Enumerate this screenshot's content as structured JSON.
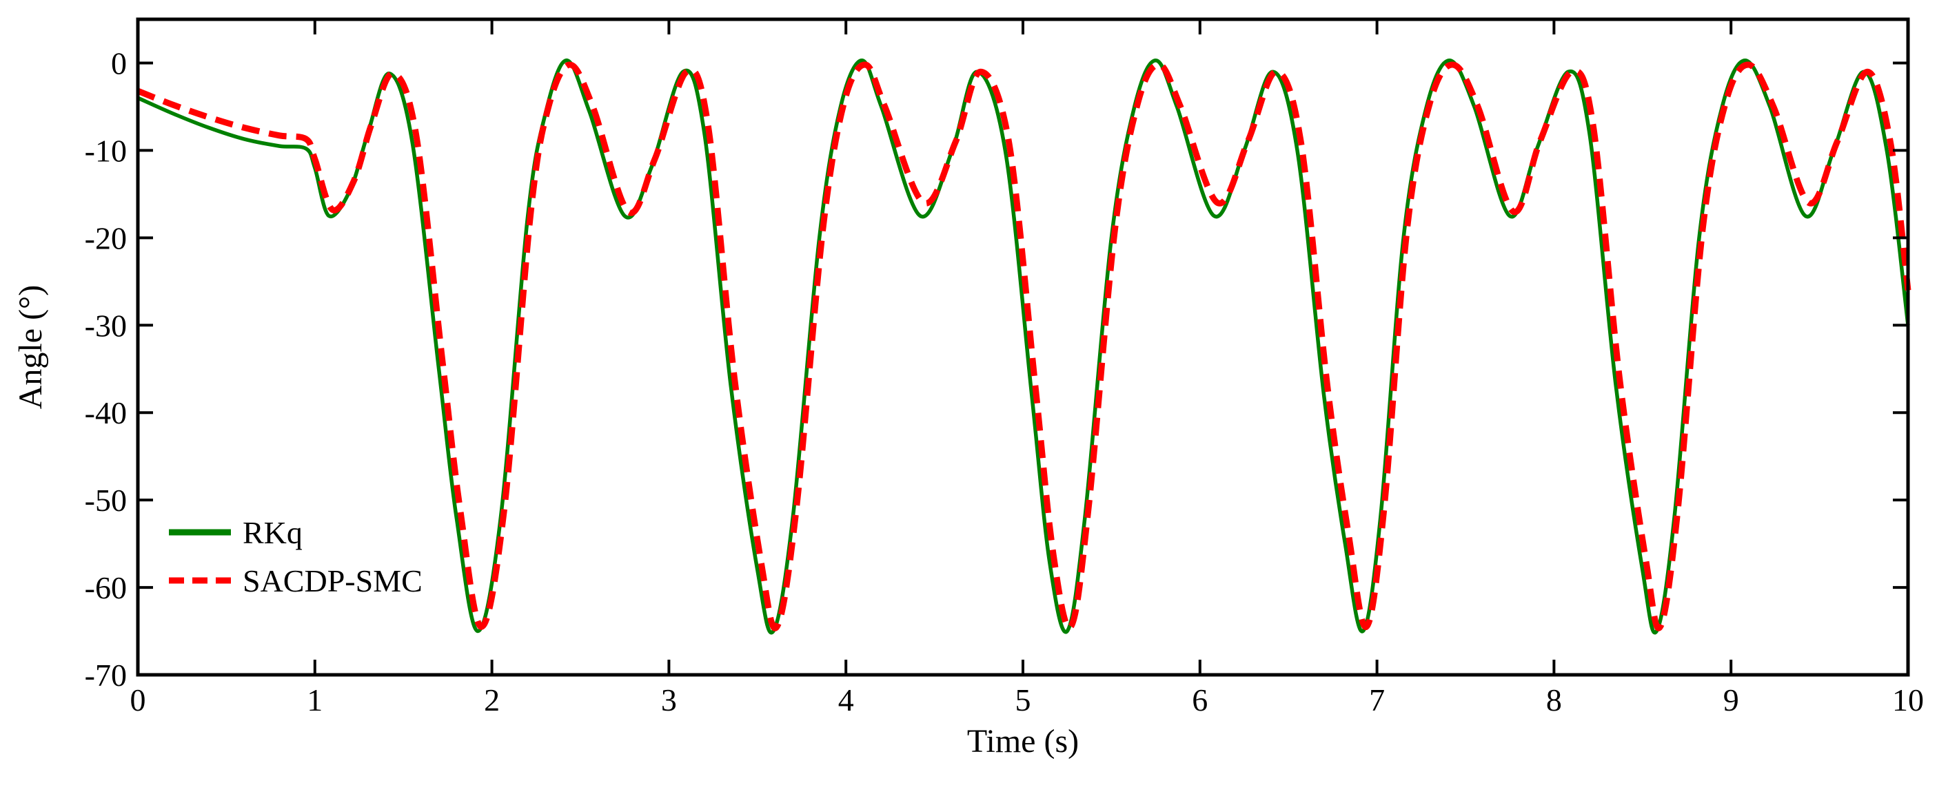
{
  "chart_data": {
    "type": "line",
    "xlabel": "Time (s)",
    "ylabel": "Angle (°)",
    "xlim": [
      0,
      10
    ],
    "ylim": [
      -70,
      5
    ],
    "xticks": [
      0,
      1,
      2,
      3,
      4,
      5,
      6,
      7,
      8,
      9,
      10
    ],
    "yticks": [
      0,
      -10,
      -20,
      -30,
      -40,
      -50,
      -60,
      -70
    ],
    "xtick_labels": [
      "0",
      "1",
      "2",
      "3",
      "4",
      "5",
      "6",
      "7",
      "8",
      "9",
      "10"
    ],
    "ytick_labels": [
      "0",
      "-10",
      "-20",
      "-30",
      "-40",
      "-50",
      "-60",
      "-70"
    ],
    "grid": false,
    "legend_position": "bottom-left",
    "series": [
      {
        "name": "RKq",
        "color": "#008000",
        "style": "solid",
        "x": [
          0,
          0.2,
          0.4,
          0.6,
          0.8,
          0.95,
          1.0,
          1.08,
          1.2,
          1.3,
          1.42,
          1.55,
          1.7,
          1.8,
          1.92,
          2.05,
          2.2,
          2.3,
          2.42,
          2.55,
          2.75,
          2.9,
          3.08,
          3.2,
          3.35,
          3.5,
          3.59,
          3.7,
          3.85,
          3.97,
          4.09,
          4.2,
          4.42,
          4.6,
          4.74,
          4.9,
          5.05,
          5.15,
          5.25,
          5.35,
          5.5,
          5.63,
          5.75,
          5.87,
          6.08,
          6.25,
          6.41,
          6.55,
          6.7,
          6.82,
          6.92,
          7.02,
          7.15,
          7.28,
          7.41,
          7.55,
          7.75,
          7.9,
          8.08,
          8.2,
          8.35,
          8.5,
          8.58,
          8.68,
          8.82,
          8.95,
          9.08,
          9.22,
          9.42,
          9.58,
          9.75,
          9.88,
          10.0
        ],
        "y": [
          -4,
          -5.8,
          -7.4,
          -8.7,
          -9.5,
          -9.8,
          -12,
          -17.5,
          -14.5,
          -8,
          -1.2,
          -9,
          -35,
          -52,
          -65,
          -52,
          -18,
          -6,
          0.3,
          -5.5,
          -17.5,
          -12,
          -1.0,
          -8,
          -37,
          -58,
          -65,
          -52,
          -20,
          -5,
          0.3,
          -5,
          -17.5,
          -10,
          -1.0,
          -10,
          -38,
          -57,
          -65,
          -52,
          -20,
          -5,
          0.3,
          -5,
          -17.5,
          -10,
          -1.0,
          -10,
          -38,
          -55,
          -65,
          -52,
          -20,
          -5,
          0.3,
          -5,
          -17.5,
          -10,
          -1.0,
          -8,
          -37,
          -58,
          -65,
          -52,
          -20,
          -5,
          0.3,
          -5,
          -17.5,
          -10,
          -1.0,
          -10,
          -30
        ]
      },
      {
        "name": "SACDP-SMC",
        "color": "#ff0000",
        "style": "dashed",
        "x": [
          0,
          0.2,
          0.4,
          0.6,
          0.8,
          0.95,
          1.0,
          1.1,
          1.22,
          1.32,
          1.44,
          1.57,
          1.72,
          1.82,
          1.94,
          2.07,
          2.22,
          2.32,
          2.44,
          2.57,
          2.77,
          2.92,
          3.1,
          3.22,
          3.37,
          3.52,
          3.61,
          3.72,
          3.87,
          3.99,
          4.11,
          4.22,
          4.44,
          4.62,
          4.76,
          4.92,
          5.07,
          5.17,
          5.27,
          5.37,
          5.52,
          5.65,
          5.77,
          5.89,
          6.1,
          6.27,
          6.43,
          6.57,
          6.72,
          6.84,
          6.94,
          7.04,
          7.17,
          7.3,
          7.43,
          7.57,
          7.77,
          7.92,
          8.1,
          8.22,
          8.37,
          8.52,
          8.6,
          8.7,
          8.84,
          8.97,
          9.1,
          9.24,
          9.44,
          9.6,
          9.77,
          9.9,
          10.0
        ],
        "y": [
          -3.2,
          -4.8,
          -6.2,
          -7.4,
          -8.3,
          -8.7,
          -11,
          -16.8,
          -13.5,
          -7,
          -1.2,
          -8,
          -34,
          -51,
          -64.5,
          -51,
          -17,
          -5,
          -0.2,
          -5,
          -17,
          -11,
          -1.0,
          -7,
          -36,
          -57,
          -64.5,
          -51,
          -19,
          -4.5,
          -0.2,
          -5,
          -16,
          -9,
          -1.0,
          -9,
          -37,
          -56,
          -64.5,
          -51,
          -19,
          -4.5,
          -0.2,
          -5,
          -16,
          -9,
          -1.0,
          -9,
          -37,
          -54,
          -64.5,
          -51,
          -19,
          -4.5,
          -0.2,
          -5,
          -17,
          -9,
          -1.0,
          -7,
          -36,
          -57,
          -64.5,
          -51,
          -19,
          -4.5,
          -0.2,
          -5,
          -16,
          -9,
          -1.0,
          -9,
          -26
        ]
      }
    ]
  }
}
